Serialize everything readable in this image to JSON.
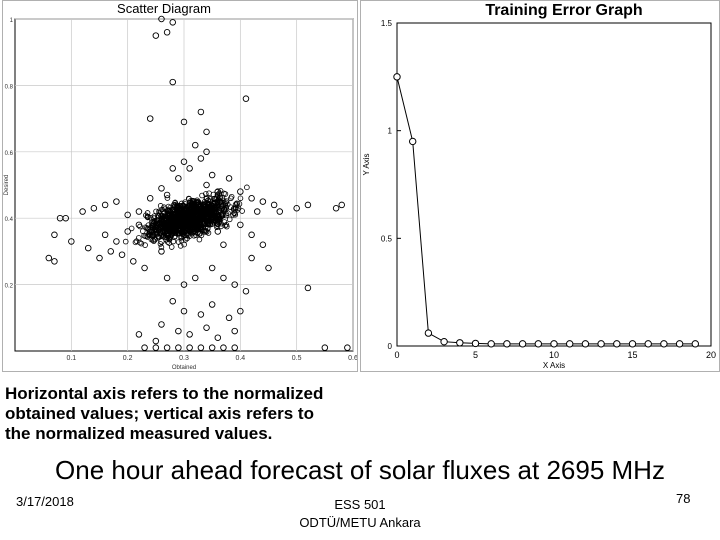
{
  "caption": {
    "line1": "Horizontal axis refers to the normalized",
    "line2": "obtained values; vertical axis refers to",
    "line3": "the normalized measured values."
  },
  "subtitle": "One hour ahead forecast of solar fluxes at 2695 MHz",
  "footer": {
    "date": "3/17/2018",
    "course": "ESS 501",
    "institution": "ODTÜ/METU Ankara",
    "page": "78"
  },
  "chart_data": [
    {
      "type": "scatter",
      "title": "Scatter Diagram",
      "xlabel": "Obtained",
      "ylabel": "Desired",
      "xlim": [
        0,
        0.6
      ],
      "ylim": [
        0,
        1
      ],
      "x_ticks": [
        "0.1",
        "0.2",
        "0.3",
        "0.4",
        "0.5",
        "0.6"
      ],
      "y_ticks": [
        "0.2",
        "0.4",
        "0.6",
        "0.8",
        "1"
      ],
      "grid": true,
      "points": [
        [
          0.08,
          0.4
        ],
        [
          0.09,
          0.4
        ],
        [
          0.07,
          0.35
        ],
        [
          0.06,
          0.28
        ],
        [
          0.07,
          0.27
        ],
        [
          0.12,
          0.42
        ],
        [
          0.14,
          0.43
        ],
        [
          0.16,
          0.44
        ],
        [
          0.18,
          0.45
        ],
        [
          0.2,
          0.41
        ],
        [
          0.22,
          0.42
        ],
        [
          0.24,
          0.46
        ],
        [
          0.17,
          0.3
        ],
        [
          0.19,
          0.29
        ],
        [
          0.13,
          0.31
        ],
        [
          0.15,
          0.28
        ],
        [
          0.21,
          0.27
        ],
        [
          0.23,
          0.25
        ],
        [
          0.26,
          0.3
        ],
        [
          0.27,
          0.22
        ],
        [
          0.3,
          0.2
        ],
        [
          0.32,
          0.22
        ],
        [
          0.35,
          0.25
        ],
        [
          0.37,
          0.22
        ],
        [
          0.39,
          0.2
        ],
        [
          0.41,
          0.18
        ],
        [
          0.28,
          0.15
        ],
        [
          0.3,
          0.12
        ],
        [
          0.33,
          0.11
        ],
        [
          0.35,
          0.14
        ],
        [
          0.38,
          0.1
        ],
        [
          0.4,
          0.12
        ],
        [
          0.26,
          0.08
        ],
        [
          0.29,
          0.06
        ],
        [
          0.31,
          0.05
        ],
        [
          0.34,
          0.07
        ],
        [
          0.36,
          0.04
        ],
        [
          0.39,
          0.06
        ],
        [
          0.22,
          0.05
        ],
        [
          0.25,
          0.03
        ],
        [
          0.23,
          0.01
        ],
        [
          0.25,
          0.01
        ],
        [
          0.27,
          0.01
        ],
        [
          0.29,
          0.01
        ],
        [
          0.31,
          0.01
        ],
        [
          0.33,
          0.01
        ],
        [
          0.35,
          0.01
        ],
        [
          0.37,
          0.01
        ],
        [
          0.39,
          0.01
        ],
        [
          0.55,
          0.01
        ],
        [
          0.59,
          0.01
        ],
        [
          0.52,
          0.19
        ],
        [
          0.5,
          0.43
        ],
        [
          0.46,
          0.44
        ],
        [
          0.47,
          0.42
        ],
        [
          0.43,
          0.42
        ],
        [
          0.44,
          0.45
        ],
        [
          0.57,
          0.43
        ],
        [
          0.58,
          0.44
        ],
        [
          0.52,
          0.44
        ],
        [
          0.32,
          0.62
        ],
        [
          0.34,
          0.6
        ],
        [
          0.33,
          0.58
        ],
        [
          0.31,
          0.55
        ],
        [
          0.3,
          0.57
        ],
        [
          0.35,
          0.53
        ],
        [
          0.34,
          0.5
        ],
        [
          0.36,
          0.48
        ],
        [
          0.38,
          0.52
        ],
        [
          0.28,
          0.55
        ],
        [
          0.29,
          0.52
        ],
        [
          0.26,
          0.49
        ],
        [
          0.27,
          0.47
        ],
        [
          0.4,
          0.48
        ],
        [
          0.42,
          0.46
        ],
        [
          0.34,
          0.66
        ],
        [
          0.3,
          0.69
        ],
        [
          0.33,
          0.72
        ],
        [
          0.41,
          0.76
        ],
        [
          0.28,
          0.81
        ],
        [
          0.27,
          0.96
        ],
        [
          0.28,
          0.99
        ],
        [
          0.26,
          1.0
        ],
        [
          0.25,
          0.95
        ],
        [
          0.24,
          0.7
        ],
        [
          0.4,
          0.38
        ],
        [
          0.42,
          0.35
        ],
        [
          0.44,
          0.32
        ],
        [
          0.42,
          0.28
        ],
        [
          0.45,
          0.25
        ],
        [
          0.37,
          0.32
        ],
        [
          0.36,
          0.36
        ],
        [
          0.2,
          0.36
        ],
        [
          0.18,
          0.33
        ],
        [
          0.16,
          0.35
        ],
        [
          0.1,
          0.33
        ],
        [
          0.22,
          0.38
        ],
        [
          0.24,
          0.36
        ],
        [
          0.26,
          0.33
        ]
      ],
      "dense_cluster": {
        "x_center": 0.31,
        "y_center": 0.4,
        "x_spread": 0.07,
        "y_spread": 0.05,
        "count": 1200
      }
    },
    {
      "type": "line",
      "title": "Training Error Graph",
      "xlabel": "X Axis",
      "ylabel": "Y Axis",
      "xlim": [
        0,
        20
      ],
      "ylim": [
        0,
        1.5
      ],
      "x_ticks": [
        "0",
        "5",
        "10",
        "15",
        "20"
      ],
      "y_ticks": [
        "0",
        "0.5",
        "1",
        "1.5"
      ],
      "grid": false,
      "x": [
        0,
        1,
        2,
        3,
        4,
        5,
        6,
        7,
        8,
        9,
        10,
        11,
        12,
        13,
        14,
        15,
        16,
        17,
        18,
        19
      ],
      "y": [
        1.25,
        0.95,
        0.06,
        0.02,
        0.015,
        0.012,
        0.01,
        0.01,
        0.01,
        0.01,
        0.01,
        0.01,
        0.01,
        0.01,
        0.01,
        0.01,
        0.01,
        0.01,
        0.01,
        0.01
      ]
    }
  ]
}
